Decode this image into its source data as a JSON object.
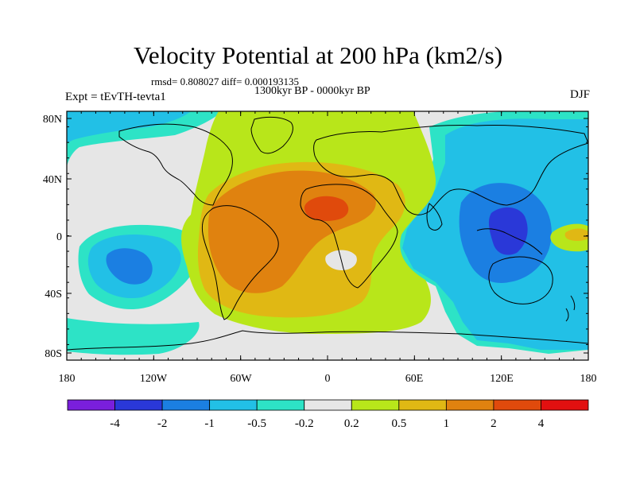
{
  "title": "Velocity Potential at 200 hPa (km2/s)",
  "stats": "rmsd= 0.808027 diff= 0.000193135",
  "period": "1300kyr BP - 0000kyr BP",
  "experiment": "Expt = tEvTH-tevta1",
  "season": "DJF",
  "lat_labels": [
    "80N",
    "40N",
    "0",
    "40S",
    "80S"
  ],
  "lon_labels": [
    "180",
    "120W",
    "60W",
    "0",
    "60E",
    "120E",
    "180"
  ],
  "colorbar": {
    "colors": [
      "#7a1fdc",
      "#2a38d8",
      "#1b7fe2",
      "#22c0e6",
      "#2de3c6",
      "#e6e6e6",
      "#b8e61a",
      "#e0b814",
      "#e0820f",
      "#e04a0c",
      "#e21010"
    ],
    "labels": [
      "-4",
      "-2",
      "-1",
      "-0.5",
      "-0.2",
      "0.2",
      "0.5",
      "1",
      "2",
      "4"
    ]
  }
}
